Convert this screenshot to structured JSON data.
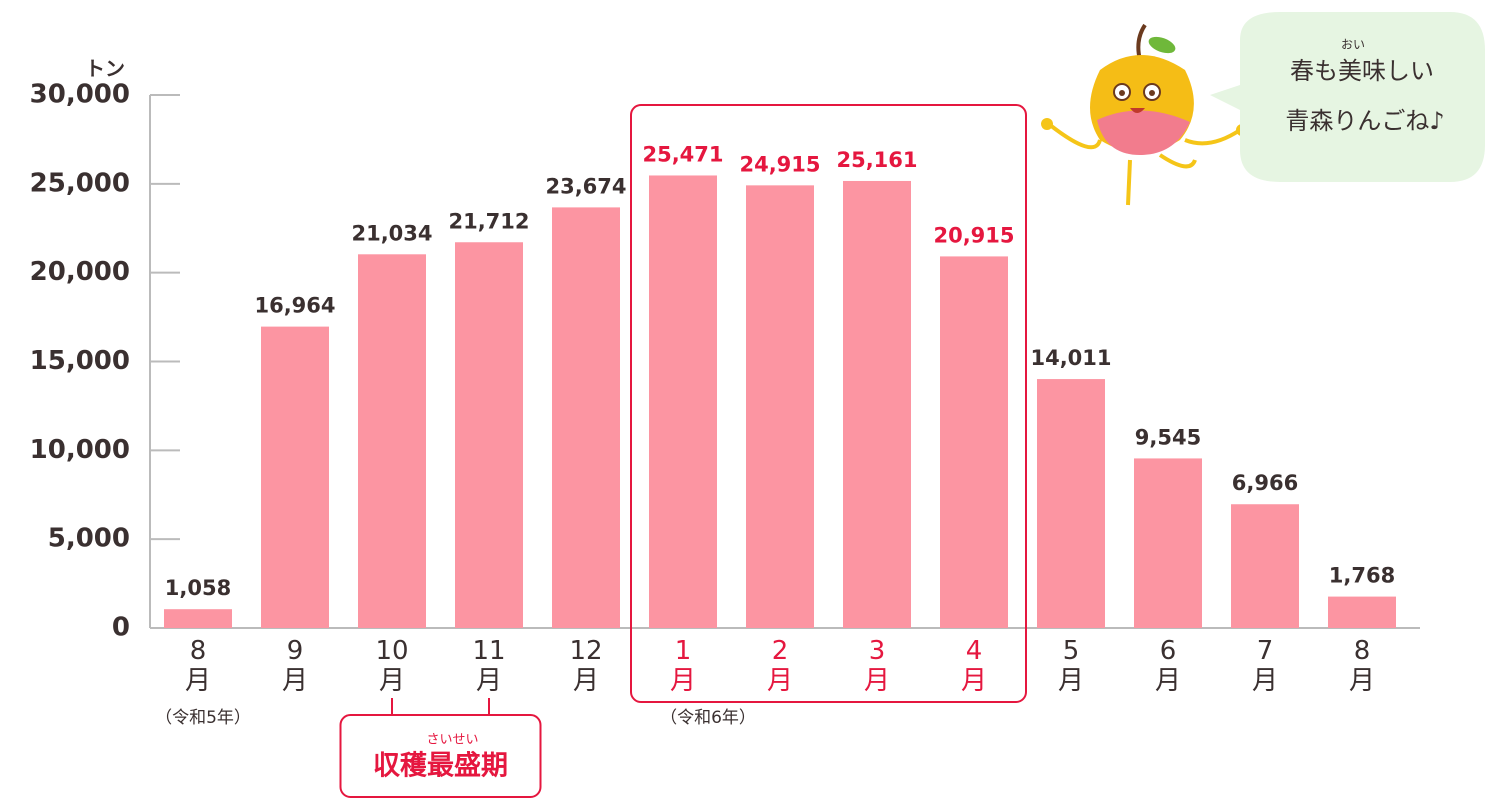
{
  "chart_data": {
    "type": "bar",
    "unit_label": "トン",
    "categories": [
      "8月",
      "9月",
      "10月",
      "11月",
      "12月",
      "1月",
      "2月",
      "3月",
      "4月",
      "5月",
      "6月",
      "7月",
      "8月"
    ],
    "values": [
      1058,
      16964,
      21034,
      21712,
      23674,
      25471,
      24915,
      25161,
      20915,
      14011,
      9545,
      6966,
      1768
    ],
    "value_labels": [
      "1,058",
      "16,964",
      "21,034",
      "21,712",
      "23,674",
      "25,471",
      "24,915",
      "25,161",
      "20,915",
      "14,011",
      "9,545",
      "6,966",
      "1,768"
    ],
    "color": "#fc95a2",
    "highlight": {
      "from": 5,
      "to": 8,
      "color": "#e5173f"
    },
    "ylim": [
      0,
      30000
    ],
    "yticks": [
      0,
      {
        "value": 5000,
        "label": "5,000"
      },
      {
        "value": 10000,
        "label": "10,000"
      },
      {
        "value": 15000,
        "label": "15,000"
      },
      {
        "value": 20000,
        "label": "20,000"
      },
      {
        "value": 25000,
        "label": "25,000"
      },
      {
        "value": 30000,
        "label": "30,000"
      }
    ],
    "annotations": [
      "（令和5年）",
      "（令和6年）"
    ],
    "peak_label": {
      "text": "収穫最盛期",
      "ruby": "さいせい"
    },
    "bubble": {
      "lines": [
        "春も美味しい",
        "青森りんごね♪"
      ],
      "ruby": "おい"
    }
  }
}
